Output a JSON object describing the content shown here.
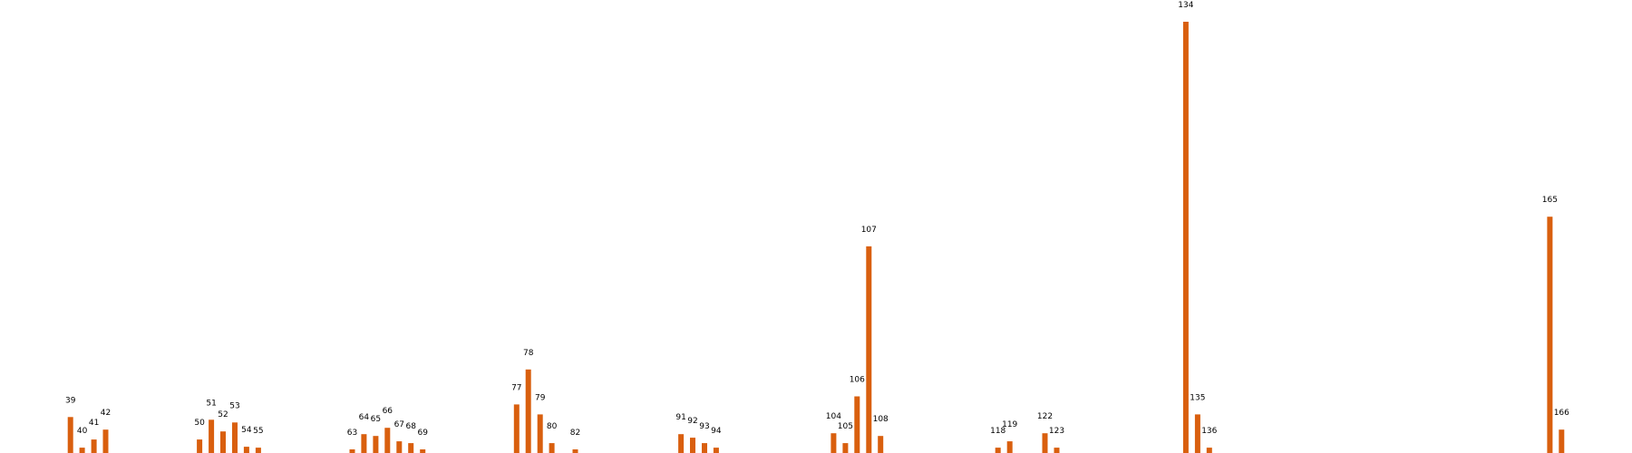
{
  "chart_data": {
    "type": "bar",
    "title": "",
    "xlabel": "",
    "ylabel": "",
    "grid": false,
    "legend": "none",
    "bar_color": "#d95f0e",
    "x": [
      39,
      40,
      41,
      42,
      50,
      51,
      52,
      53,
      54,
      55,
      63,
      64,
      65,
      66,
      67,
      68,
      69,
      77,
      78,
      79,
      80,
      82,
      91,
      92,
      93,
      94,
      104,
      105,
      106,
      107,
      108,
      118,
      119,
      122,
      123,
      134,
      135,
      136,
      165,
      166
    ],
    "values": [
      40,
      6,
      15,
      26,
      15,
      37,
      24,
      34,
      7,
      6,
      4,
      21,
      19,
      28,
      13,
      11,
      4,
      54,
      93,
      43,
      11,
      4,
      21,
      17,
      11,
      6,
      22,
      11,
      63,
      230,
      19,
      6,
      13,
      22,
      6,
      480,
      43,
      6,
      263,
      26
    ],
    "xlim": [
      33,
      172
    ],
    "ylim": [
      0,
      480
    ]
  }
}
